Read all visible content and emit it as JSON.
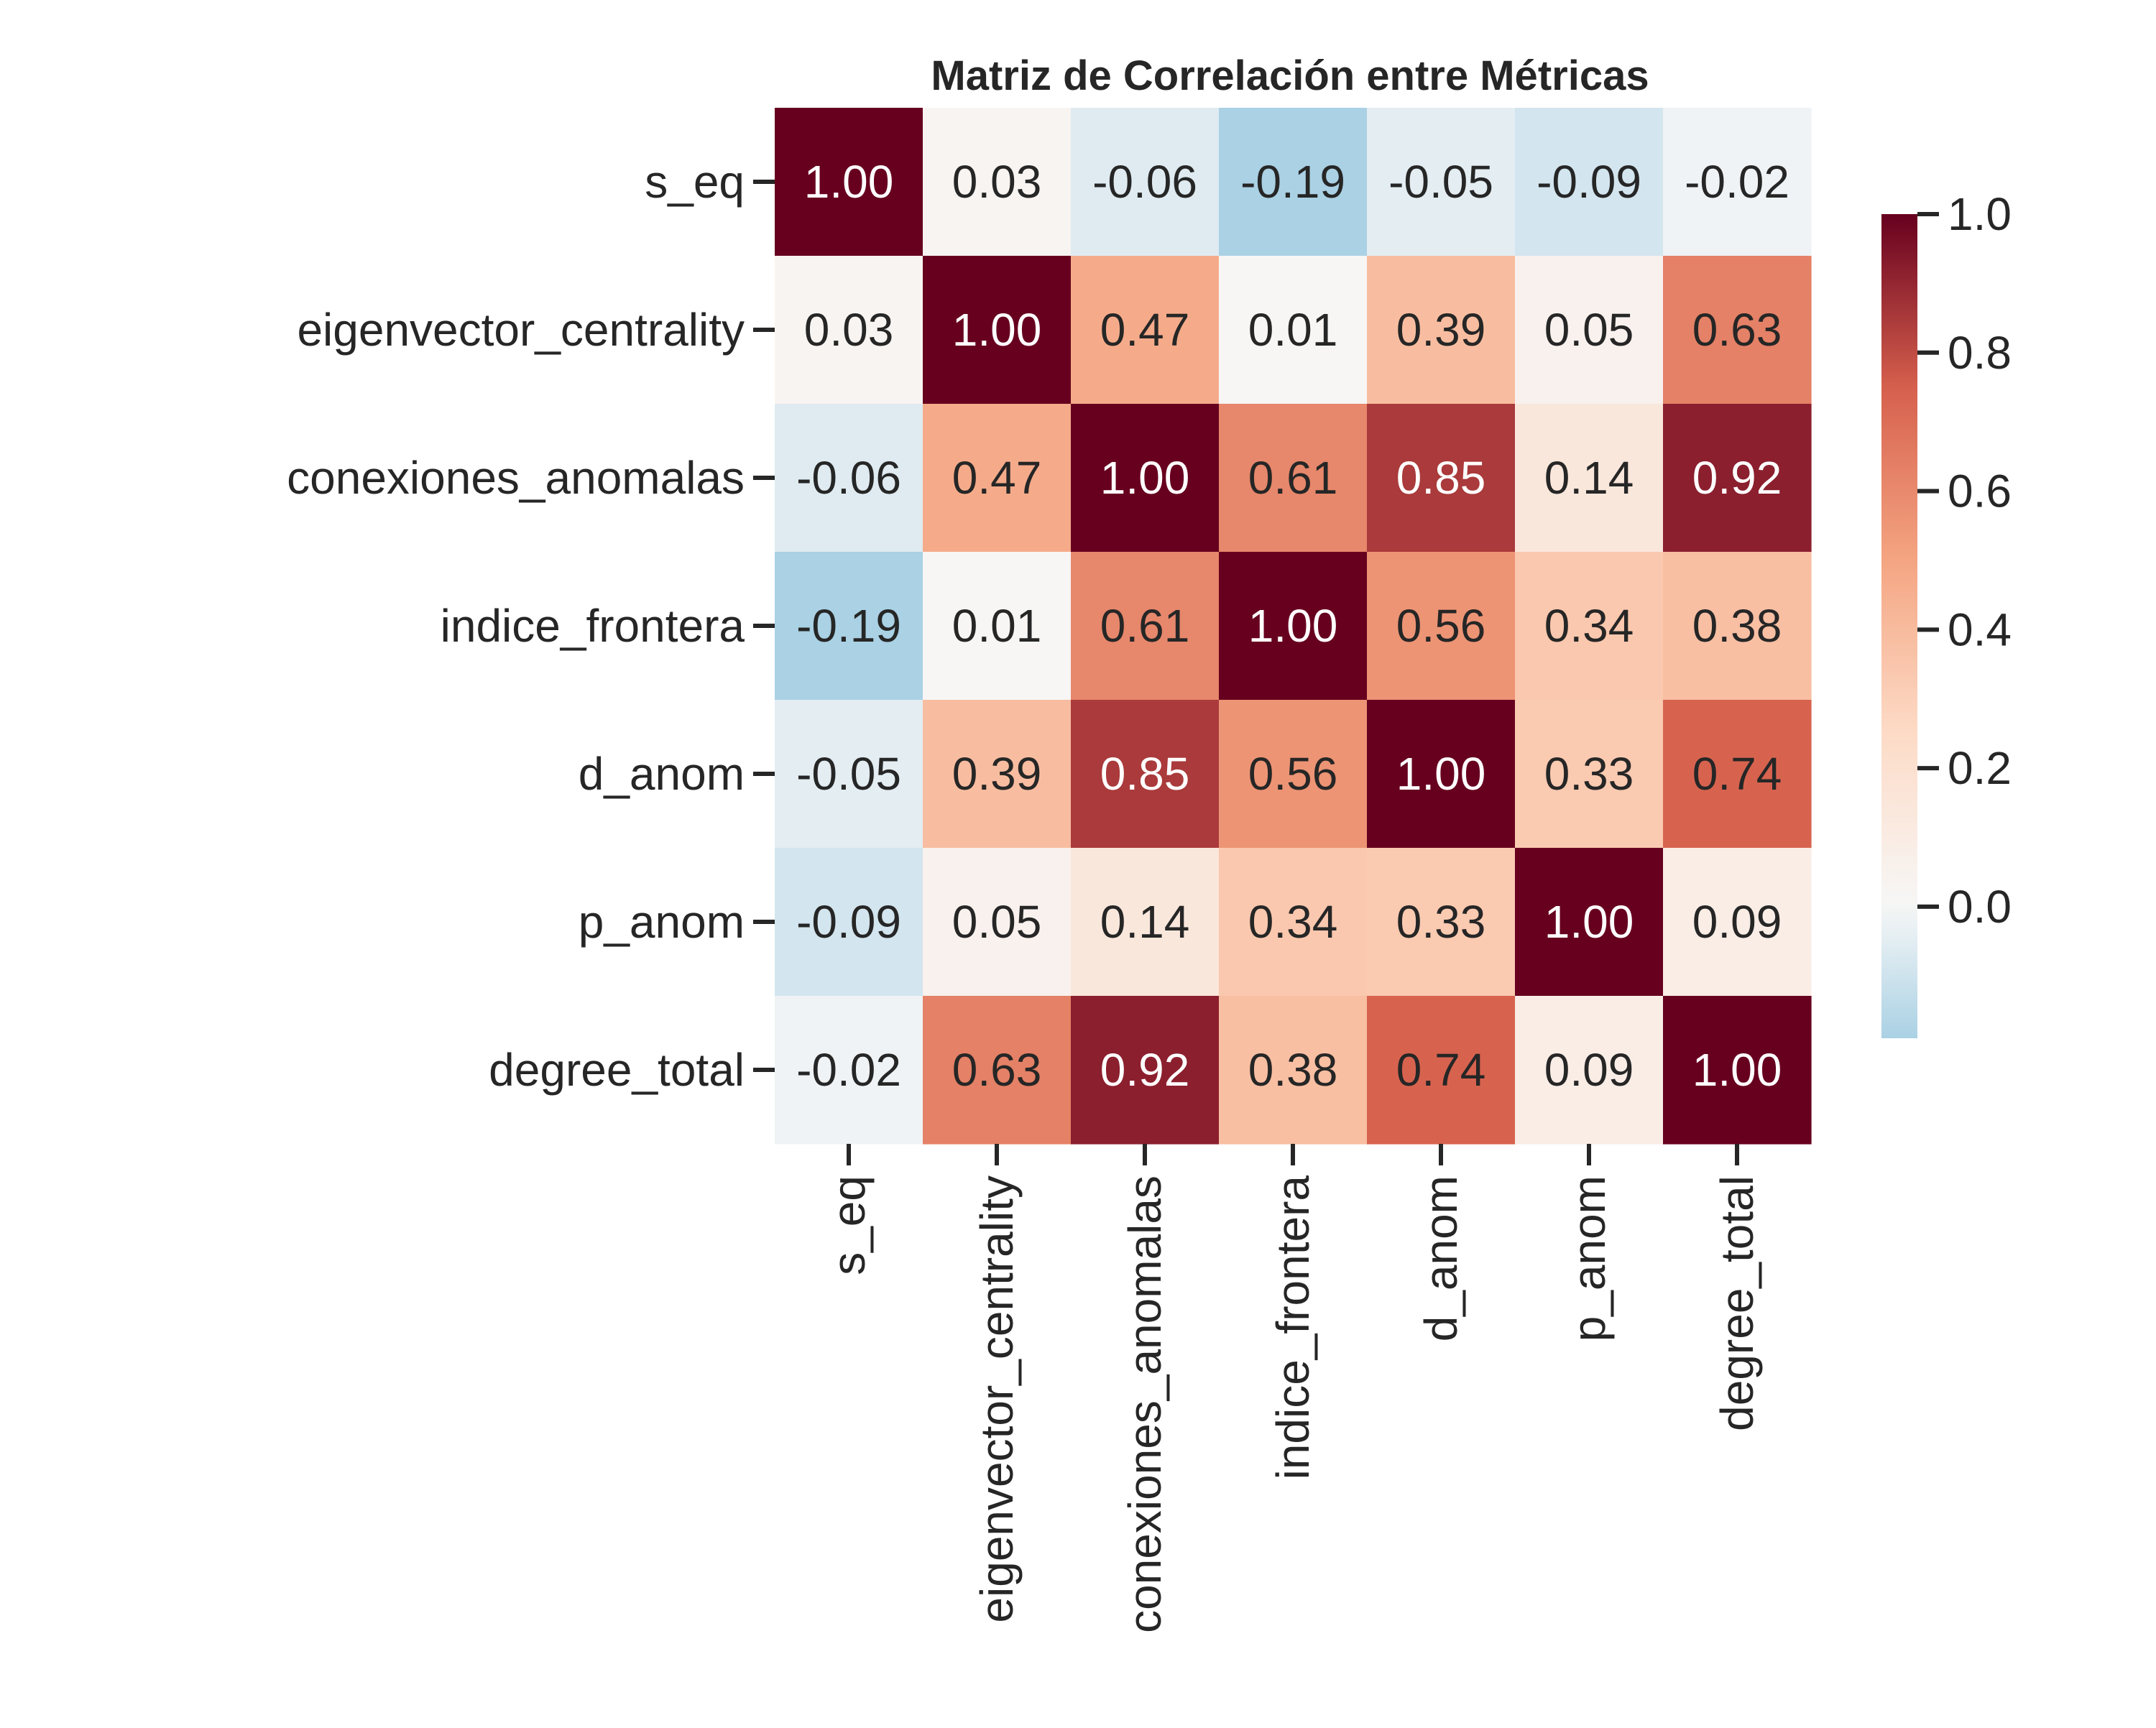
{
  "chart_data": {
    "type": "heatmap",
    "title": "Matriz de Correlación entre Métricas",
    "row_labels": [
      "s_eq",
      "eigenvector_centrality",
      "conexiones_anomalas",
      "indice_frontera",
      "d_anom",
      "p_anom",
      "degree_total"
    ],
    "col_labels": [
      "s_eq",
      "eigenvector_centrality",
      "conexiones_anomalas",
      "indice_frontera",
      "d_anom",
      "p_anom",
      "degree_total"
    ],
    "values": [
      [
        1.0,
        0.03,
        -0.06,
        -0.19,
        -0.05,
        -0.09,
        -0.02
      ],
      [
        0.03,
        1.0,
        0.47,
        0.01,
        0.39,
        0.05,
        0.63
      ],
      [
        -0.06,
        0.47,
        1.0,
        0.61,
        0.85,
        0.14,
        0.92
      ],
      [
        -0.19,
        0.01,
        0.61,
        1.0,
        0.56,
        0.34,
        0.38
      ],
      [
        -0.05,
        0.39,
        0.85,
        0.56,
        1.0,
        0.33,
        0.74
      ],
      [
        -0.09,
        0.05,
        0.14,
        0.34,
        0.33,
        1.0,
        0.09
      ],
      [
        -0.02,
        0.63,
        0.92,
        0.38,
        0.74,
        0.09,
        1.0
      ]
    ],
    "value_format": "0.00",
    "colormap": "RdBu_r",
    "center": 0.0,
    "colorbar": {
      "range": [
        -0.19,
        1.0
      ],
      "ticks": [
        0.0,
        0.2,
        0.4,
        0.6,
        0.8,
        1.0
      ],
      "tick_labels": [
        "0.0",
        "0.2",
        "0.4",
        "0.6",
        "0.8",
        "1.0"
      ],
      "placement": "right"
    },
    "text_colors": {
      "dark": "#262626",
      "light": "#ffffff"
    }
  }
}
